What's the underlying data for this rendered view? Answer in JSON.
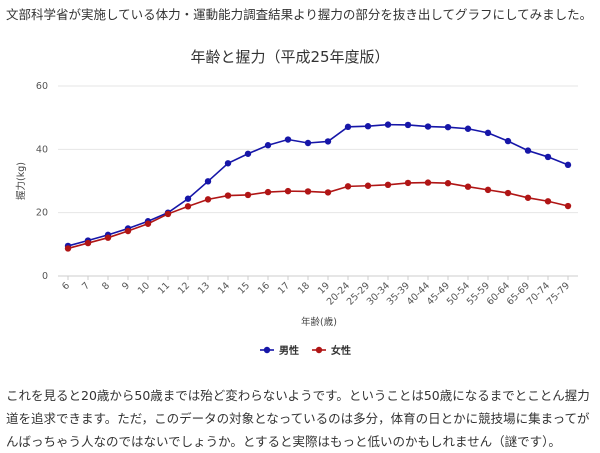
{
  "intro_text": "文部科学省が実施している体力・運動能力調査結果より握力の部分を抜き出してグラフにしてみました。",
  "outro_text": "これを見ると20歳から50歳までは殆ど変わらないようです。ということは50歳になるまでとことん握力道を追求できます。ただ，このデータの対象となっているのは多分，体育の日とかに競技場に集まってがんばっちゃう人なのではないでしょうか。とすると実際はもっと低いのかもしれません（謎です）。",
  "colors": {
    "male": "#1616a8",
    "female": "#b01515",
    "grid": "#e6e6e6",
    "axis": "#cccccc"
  },
  "chart_data": {
    "type": "line",
    "title": "年齢と握力（平成25年度版）",
    "xlabel": "年齢(歳)",
    "ylabel": "握力(kg)",
    "ylim": [
      0,
      60
    ],
    "yticks": [
      0,
      20,
      40,
      60
    ],
    "grid": true,
    "legend_position": "bottom",
    "categories": [
      "6",
      "7",
      "8",
      "9",
      "10",
      "11",
      "12",
      "13",
      "14",
      "15",
      "16",
      "17",
      "18",
      "19",
      "20-24",
      "25-29",
      "30-34",
      "35-39",
      "40-44",
      "45-49",
      "50-54",
      "55-59",
      "60-64",
      "65-69",
      "70-74",
      "75-79"
    ],
    "series": [
      {
        "name": "男性",
        "color": "#1616a8",
        "values": [
          9.5,
          11.2,
          13.0,
          15.0,
          17.3,
          20.0,
          24.4,
          29.9,
          35.6,
          38.6,
          41.3,
          43.1,
          42.0,
          42.5,
          47.1,
          47.3,
          47.8,
          47.7,
          47.2,
          47.0,
          46.5,
          45.2,
          42.6,
          39.6,
          37.6,
          35.1
        ]
      },
      {
        "name": "女性",
        "color": "#b01515",
        "values": [
          8.7,
          10.4,
          12.1,
          14.2,
          16.5,
          19.6,
          22.0,
          24.2,
          25.4,
          25.6,
          26.5,
          26.8,
          26.7,
          26.4,
          28.3,
          28.5,
          28.8,
          29.4,
          29.5,
          29.3,
          28.2,
          27.2,
          26.2,
          24.7,
          23.6,
          22.1
        ]
      }
    ]
  }
}
